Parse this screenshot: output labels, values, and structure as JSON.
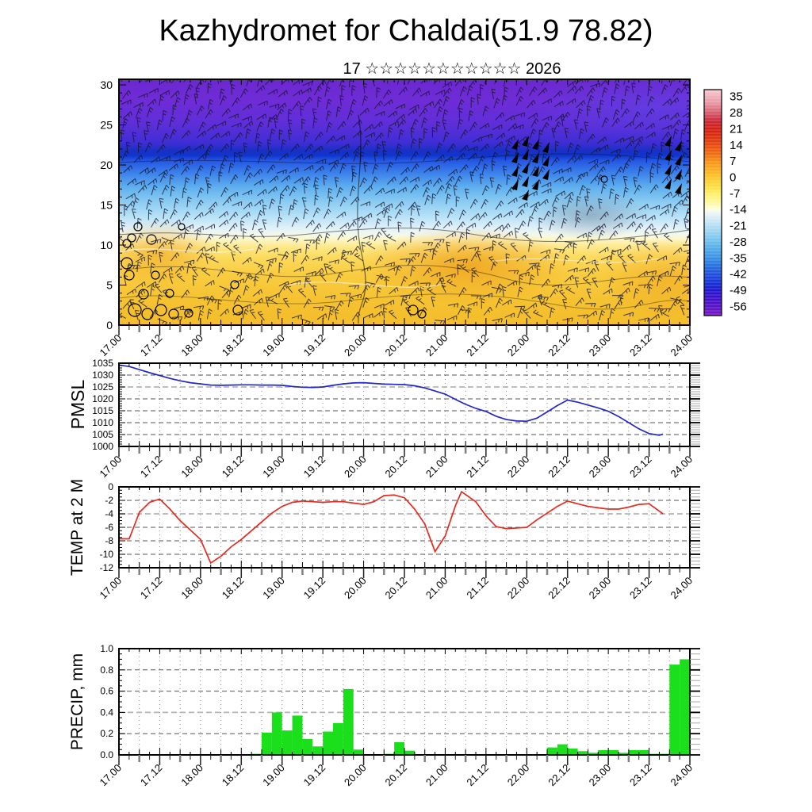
{
  "title": "Kazhydromet for Chaldai(51.9 78.82)",
  "subtitle": "17 ☆☆☆☆☆☆☆☆☆☆☆ 2026",
  "x_axis": {
    "tick_labels": [
      "17.00",
      "17.12",
      "18.00",
      "18.12",
      "19.00",
      "19.12",
      "20.00",
      "20.12",
      "21.00",
      "21.12",
      "22.00",
      "22.12",
      "23.00",
      "23.12",
      "24.00"
    ],
    "minor_step_hours": 3,
    "major_step_hours": 12
  },
  "colors": {
    "pmsl_line": "#2326cd",
    "temp_line": "#e62a1e",
    "precip_bar": "#1bdf1b",
    "grid_dark": "#555555",
    "grid_light": "#b5b5b5",
    "axis": "#000000"
  },
  "panels": {
    "cross_section": {
      "ylabel": "",
      "ytick_labels": [
        "30",
        "25",
        "20",
        "15",
        "10",
        "5",
        "0"
      ],
      "colorbar_tick_labels": [
        "35",
        "28",
        "21",
        "14",
        "7",
        "0",
        "-7",
        "-14",
        "-21",
        "-28",
        "-35",
        "-42",
        "-49",
        "-56"
      ]
    },
    "pmsl": {
      "ylabel": "PMSL",
      "ytick_labels": [
        "1035",
        "1030",
        "1025",
        "1020",
        "1015",
        "1010",
        "1005",
        "1000"
      ]
    },
    "temp": {
      "ylabel": "TEMP at 2 M",
      "ytick_labels": [
        "0",
        "-2",
        "-4",
        "-6",
        "-8",
        "-10",
        "-12"
      ]
    },
    "precip": {
      "ylabel": "PRECIP, mm",
      "ytick_labels": [
        "1.0",
        "0.8",
        "0.6",
        "0.4",
        "0.2",
        "0.0"
      ]
    }
  },
  "chart_data": [
    {
      "panel": "cross_section",
      "type": "heatmap",
      "title": "17 ☆☆☆☆☆☆☆☆☆☆☆ 2026",
      "x_range_labels": [
        "17.00",
        "24.00"
      ],
      "ylim": [
        0,
        30.7
      ],
      "yticks": [
        0,
        5,
        10,
        15,
        20,
        25,
        30
      ],
      "colorbar_values": [
        35,
        28,
        21,
        14,
        7,
        0,
        -7,
        -14,
        -21,
        -28,
        -35,
        -42,
        -49,
        -56
      ],
      "vertical_profile_bands": [
        {
          "height_range": [
            21.5,
            30.7
          ],
          "color": "#6b2ad2",
          "approx_value_c": "-45 to -56"
        },
        {
          "height_range": [
            20.0,
            21.5
          ],
          "color": "#1030c8",
          "approx_value_c": "-42"
        },
        {
          "height_range": [
            17.0,
            20.0
          ],
          "color": "#3b80ea",
          "approx_value_c": "-30 to -38"
        },
        {
          "height_range": [
            14.5,
            17.0
          ],
          "color": "#8cccf2",
          "approx_value_c": "-18 to -26"
        },
        {
          "height_range": [
            13.5,
            14.5
          ],
          "color": "#eef6f2",
          "approx_value_c": "-14"
        },
        {
          "height_range": [
            0.0,
            13.5
          ],
          "color": "#f9d149",
          "approx_value_c": "-7 to +3"
        }
      ],
      "overlay": "dense wind-barb field; black pennant clusters near 22.00 and 23.12 between heights 17-23; open calm circles lower-left and near 20.12 bottom"
    },
    {
      "panel": "pmsl",
      "type": "line",
      "ylabel": "PMSL",
      "ylim": [
        1000,
        1035
      ],
      "x_unit": "days since 17.00",
      "points": [
        [
          0,
          1034.2
        ],
        [
          0.125,
          1033.6
        ],
        [
          0.25,
          1032.3
        ],
        [
          0.375,
          1031.0
        ],
        [
          0.5,
          1029.8
        ],
        [
          0.625,
          1028.6
        ],
        [
          0.75,
          1027.6
        ],
        [
          0.875,
          1026.8
        ],
        [
          1,
          1026.3
        ],
        [
          1.125,
          1025.8
        ],
        [
          1.25,
          1025.7
        ],
        [
          1.375,
          1025.8
        ],
        [
          1.5,
          1025.9
        ],
        [
          1.625,
          1025.9
        ],
        [
          1.75,
          1025.8
        ],
        [
          1.875,
          1025.8
        ],
        [
          2,
          1025.7
        ],
        [
          2.125,
          1025.2
        ],
        [
          2.25,
          1024.9
        ],
        [
          2.375,
          1024.8
        ],
        [
          2.5,
          1025.0
        ],
        [
          2.625,
          1025.7
        ],
        [
          2.75,
          1026.3
        ],
        [
          2.875,
          1026.7
        ],
        [
          3,
          1026.8
        ],
        [
          3.125,
          1026.5
        ],
        [
          3.25,
          1026.2
        ],
        [
          3.375,
          1026.1
        ],
        [
          3.5,
          1026.0
        ],
        [
          3.625,
          1025.5
        ],
        [
          3.75,
          1024.6
        ],
        [
          3.875,
          1023.3
        ],
        [
          4,
          1022.0
        ],
        [
          4.125,
          1019.8
        ],
        [
          4.25,
          1017.7
        ],
        [
          4.375,
          1016.0
        ],
        [
          4.5,
          1014.7
        ],
        [
          4.625,
          1012.7
        ],
        [
          4.75,
          1011.3
        ],
        [
          4.875,
          1010.7
        ],
        [
          5,
          1010.6
        ],
        [
          5.125,
          1011.9
        ],
        [
          5.25,
          1014.5
        ],
        [
          5.375,
          1017.2
        ],
        [
          5.5,
          1019.5
        ],
        [
          5.625,
          1018.6
        ],
        [
          5.75,
          1017.4
        ],
        [
          5.875,
          1016.2
        ],
        [
          6,
          1014.8
        ],
        [
          6.125,
          1012.6
        ],
        [
          6.25,
          1010.0
        ],
        [
          6.375,
          1007.4
        ],
        [
          6.5,
          1005.4
        ],
        [
          6.625,
          1004.7
        ],
        [
          6.67,
          1005.2
        ]
      ]
    },
    {
      "panel": "temp",
      "type": "line",
      "ylabel": "TEMP at 2 M",
      "ylim": [
        -12,
        0
      ],
      "x_unit": "days since 17.00",
      "points": [
        [
          0,
          -7.7
        ],
        [
          0.125,
          -7.7
        ],
        [
          0.25,
          -3.8
        ],
        [
          0.375,
          -2.3
        ],
        [
          0.5,
          -1.8
        ],
        [
          0.625,
          -3.3
        ],
        [
          0.75,
          -5.0
        ],
        [
          0.875,
          -6.4
        ],
        [
          1,
          -7.8
        ],
        [
          1.125,
          -11.3
        ],
        [
          1.25,
          -10.3
        ],
        [
          1.375,
          -8.9
        ],
        [
          1.5,
          -7.8
        ],
        [
          1.625,
          -6.5
        ],
        [
          1.75,
          -5.2
        ],
        [
          1.875,
          -3.9
        ],
        [
          2,
          -2.9
        ],
        [
          2.125,
          -2.3
        ],
        [
          2.25,
          -2.1
        ],
        [
          2.375,
          -2.2
        ],
        [
          2.5,
          -2.3
        ],
        [
          2.625,
          -2.2
        ],
        [
          2.75,
          -2.2
        ],
        [
          2.875,
          -2.4
        ],
        [
          3,
          -2.6
        ],
        [
          3.125,
          -2.2
        ],
        [
          3.25,
          -1.3
        ],
        [
          3.375,
          -1.2
        ],
        [
          3.5,
          -1.6
        ],
        [
          3.625,
          -3.3
        ],
        [
          3.75,
          -5.5
        ],
        [
          3.875,
          -9.6
        ],
        [
          4,
          -7.3
        ],
        [
          4.125,
          -2.8
        ],
        [
          4.2,
          -0.7
        ],
        [
          4.375,
          -2.2
        ],
        [
          4.5,
          -4.3
        ],
        [
          4.625,
          -5.9
        ],
        [
          4.75,
          -6.2
        ],
        [
          4.875,
          -6.1
        ],
        [
          5,
          -6.0
        ],
        [
          5.125,
          -4.9
        ],
        [
          5.25,
          -3.9
        ],
        [
          5.375,
          -2.9
        ],
        [
          5.5,
          -2.1
        ],
        [
          5.625,
          -2.5
        ],
        [
          5.75,
          -2.9
        ],
        [
          5.875,
          -3.1
        ],
        [
          6,
          -3.3
        ],
        [
          6.125,
          -3.3
        ],
        [
          6.25,
          -3.0
        ],
        [
          6.375,
          -2.6
        ],
        [
          6.5,
          -2.5
        ],
        [
          6.625,
          -3.6
        ],
        [
          6.67,
          -4.0
        ]
      ]
    },
    {
      "panel": "precip",
      "type": "bar",
      "ylabel": "PRECIP, mm",
      "ylim": [
        0,
        1.0
      ],
      "x_unit": "days since 17.00 (bar left edge)",
      "bar_width_days": 0.125,
      "bars": [
        [
          1.625,
          0.01
        ],
        [
          1.75,
          0.21
        ],
        [
          1.875,
          0.4
        ],
        [
          2.0,
          0.23
        ],
        [
          2.125,
          0.37
        ],
        [
          2.25,
          0.15
        ],
        [
          2.375,
          0.08
        ],
        [
          2.5,
          0.22
        ],
        [
          2.625,
          0.3
        ],
        [
          2.75,
          0.62
        ],
        [
          2.875,
          0.05
        ],
        [
          3.25,
          0.01
        ],
        [
          3.375,
          0.12
        ],
        [
          3.5,
          0.04
        ],
        [
          5.25,
          0.07
        ],
        [
          5.375,
          0.1
        ],
        [
          5.5,
          0.06
        ],
        [
          5.625,
          0.035
        ],
        [
          5.75,
          0.02
        ],
        [
          5.875,
          0.045
        ],
        [
          6.0,
          0.045
        ],
        [
          6.125,
          0.02
        ],
        [
          6.25,
          0.045
        ],
        [
          6.375,
          0.045
        ],
        [
          6.5,
          0.01
        ],
        [
          6.625,
          0.01
        ],
        [
          6.75,
          0.85
        ],
        [
          6.875,
          0.9
        ]
      ]
    }
  ]
}
